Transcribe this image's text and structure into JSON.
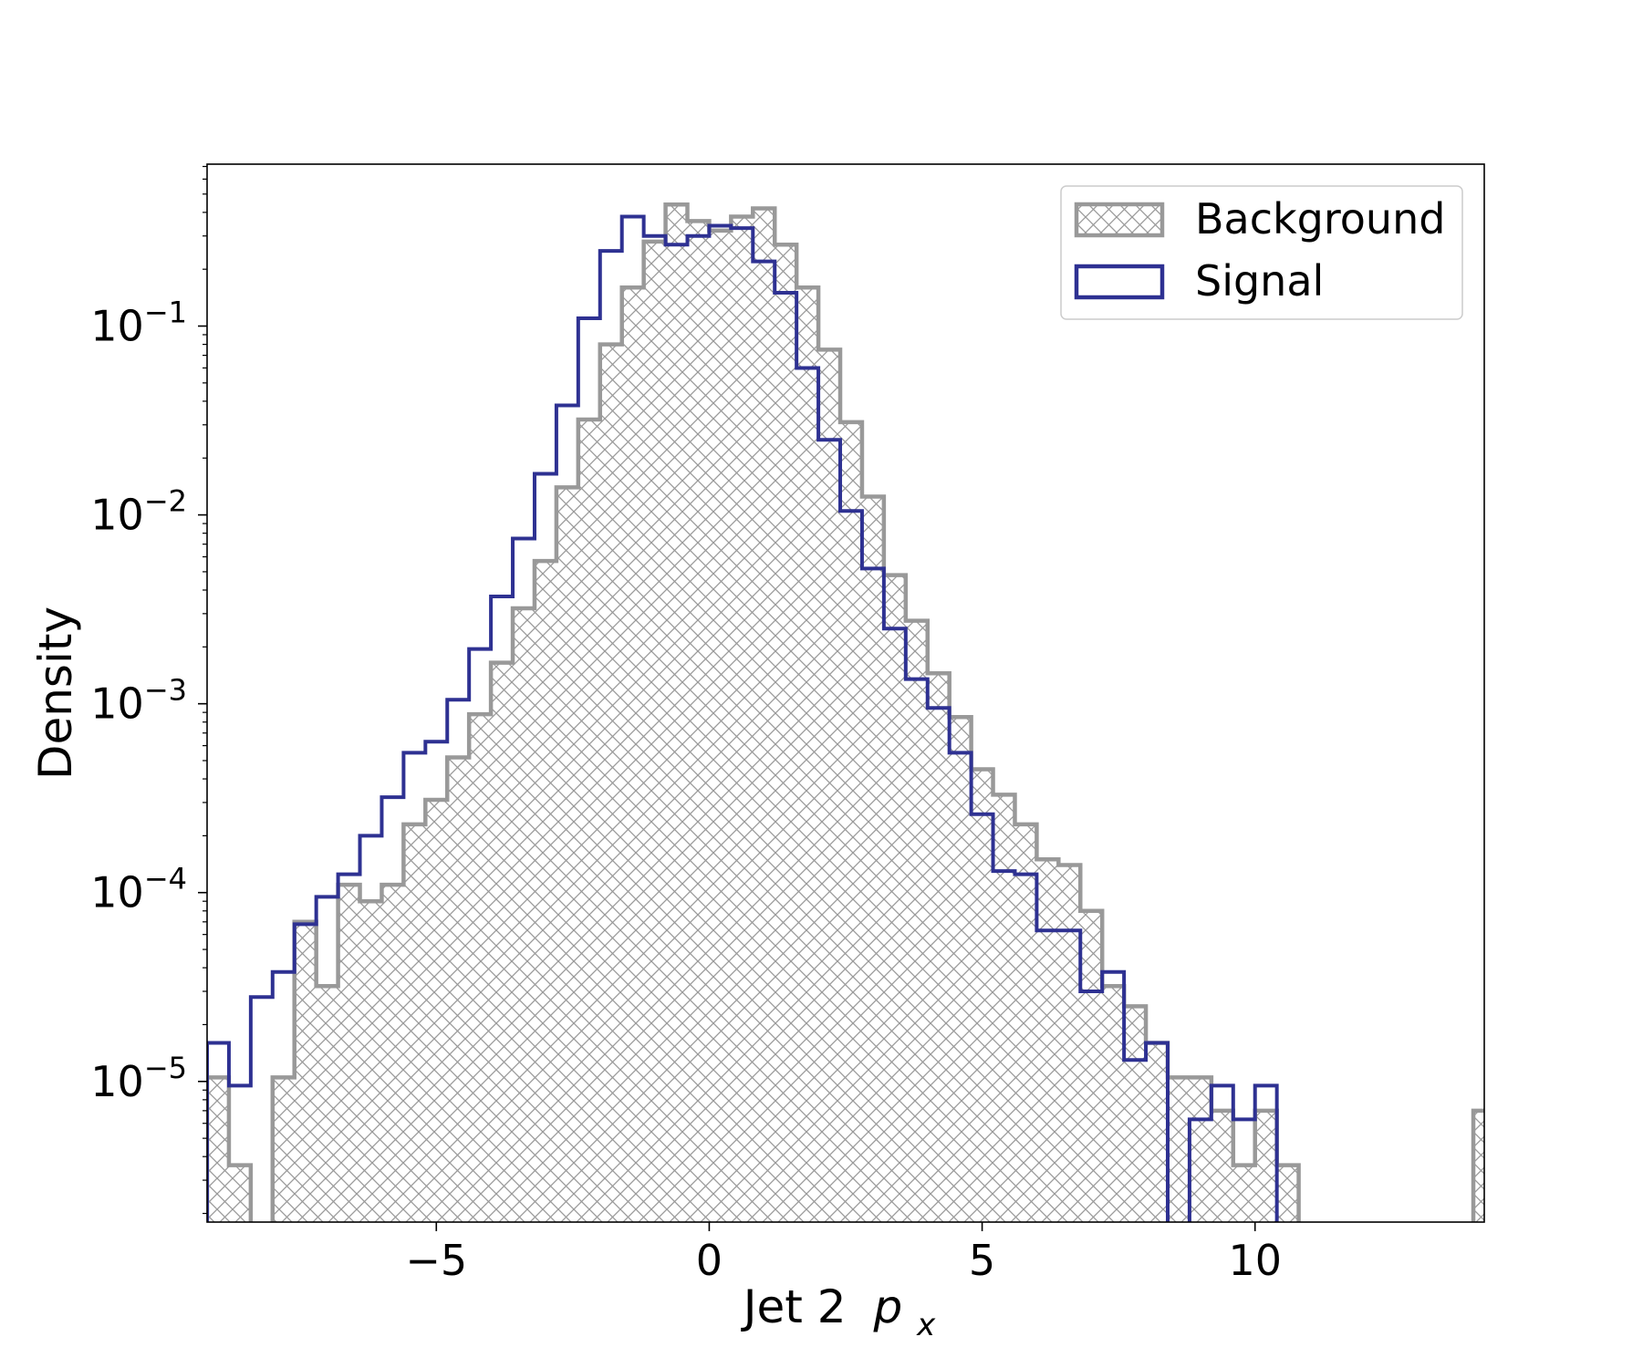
{
  "chart_data": {
    "type": "histogram",
    "xlabel": "Jet 2",
    "xlabel_var": "p",
    "xlabel_sub": "x",
    "ylabel": "Density",
    "yscale": "log",
    "xlim": [
      -9.2,
      14.2
    ],
    "ylim": [
      1.8e-06,
      0.72
    ],
    "bin_start": -9.2,
    "bin_width": 0.4,
    "x_ticks": [
      {
        "value": -5,
        "label": "−5"
      },
      {
        "value": 0,
        "label": "0"
      },
      {
        "value": 5,
        "label": "5"
      },
      {
        "value": 10,
        "label": "10"
      }
    ],
    "y_ticks": [
      {
        "value": 0.1,
        "base": "10",
        "exp": "−1"
      },
      {
        "value": 0.01,
        "base": "10",
        "exp": "−2"
      },
      {
        "value": 0.001,
        "base": "10",
        "exp": "−3"
      },
      {
        "value": 0.0001,
        "base": "10",
        "exp": "−4"
      },
      {
        "value": 1e-05,
        "base": "10",
        "exp": "−5"
      }
    ],
    "legend_position": "top-right",
    "series": [
      {
        "name": "Background",
        "style": "hatched",
        "color": "#999999",
        "values": [
          1.05e-05,
          3.6e-06,
          0,
          1.05e-05,
          7e-05,
          3.2e-05,
          0.00011,
          9e-05,
          0.00011,
          0.00023,
          0.00031,
          0.00052,
          0.00088,
          0.00165,
          0.0032,
          0.0057,
          0.014,
          0.032,
          0.08,
          0.16,
          0.28,
          0.44,
          0.36,
          0.32,
          0.38,
          0.42,
          0.27,
          0.16,
          0.075,
          0.031,
          0.0125,
          0.0048,
          0.00275,
          0.00145,
          0.00085,
          0.00045,
          0.00033,
          0.00023,
          0.00015,
          0.00014,
          8e-05,
          3.2e-05,
          2.5e-05,
          1.6e-05,
          1.05e-05,
          1.05e-05,
          7e-06,
          3.6e-06,
          7e-06,
          3.6e-06,
          0,
          0,
          0,
          0,
          0,
          0,
          0,
          0,
          7e-06
        ]
      },
      {
        "name": "Signal",
        "style": "step",
        "color": "#2e3192",
        "values": [
          1.6e-05,
          9.5e-06,
          2.8e-05,
          3.8e-05,
          6.8e-05,
          9.5e-05,
          0.000125,
          0.0002,
          0.00032,
          0.00055,
          0.00063,
          0.00105,
          0.00195,
          0.0037,
          0.0075,
          0.0165,
          0.038,
          0.11,
          0.25,
          0.38,
          0.3,
          0.27,
          0.3,
          0.34,
          0.33,
          0.22,
          0.15,
          0.06,
          0.025,
          0.0105,
          0.0052,
          0.0025,
          0.00135,
          0.00095,
          0.00055,
          0.00026,
          0.00013,
          0.000125,
          6.3e-05,
          6.3e-05,
          3e-05,
          3.8e-05,
          1.3e-05,
          1.6e-05,
          0,
          6.3e-06,
          9.5e-06,
          6.3e-06,
          9.5e-06,
          0
        ]
      }
    ]
  }
}
